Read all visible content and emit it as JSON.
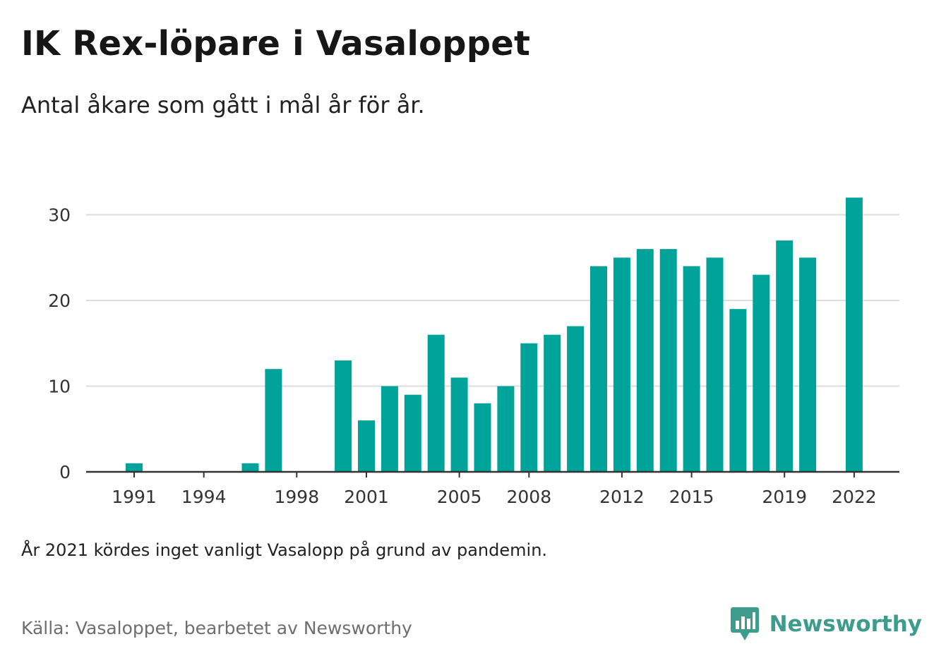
{
  "header": {
    "title": "IK Rex-löpare i Vasaloppet",
    "subtitle": "Antal åkare som gått i mål år för år."
  },
  "footer": {
    "note": "År 2021 kördes inget vanligt Vasalopp på grund av pandemin.",
    "source": "Källa: Vasaloppet, bearbetet av Newsworthy",
    "brand": "Newsworthy"
  },
  "colors": {
    "bar": "#00a39a",
    "grid": "#dddddd",
    "baseline": "#333333",
    "brand": "#3d9c8c"
  },
  "icons": {
    "logo": "newsworthy-logo-icon"
  },
  "chart_data": {
    "type": "bar",
    "title": "IK Rex-löpare i Vasaloppet",
    "subtitle": "Antal åkare som gått i mål år för år.",
    "xlabel": "",
    "ylabel": "",
    "ylim": [
      0,
      32
    ],
    "yticks": [
      0,
      10,
      20,
      30
    ],
    "grid": true,
    "categories": [
      1991,
      1992,
      1993,
      1994,
      1995,
      1996,
      1997,
      1998,
      1999,
      2000,
      2001,
      2002,
      2003,
      2004,
      2005,
      2006,
      2007,
      2008,
      2009,
      2010,
      2011,
      2012,
      2013,
      2014,
      2015,
      2016,
      2017,
      2018,
      2019,
      2020,
      2021,
      2022
    ],
    "values": [
      1,
      0,
      0,
      0,
      0,
      1,
      12,
      0,
      0,
      13,
      6,
      10,
      9,
      16,
      11,
      8,
      10,
      15,
      16,
      17,
      24,
      25,
      26,
      26,
      24,
      25,
      19,
      23,
      27,
      25,
      null,
      32
    ],
    "xtick_labels": [
      "1991",
      "1994",
      "1998",
      "2001",
      "2005",
      "2008",
      "2012",
      "2015",
      "2019",
      "2022"
    ]
  }
}
